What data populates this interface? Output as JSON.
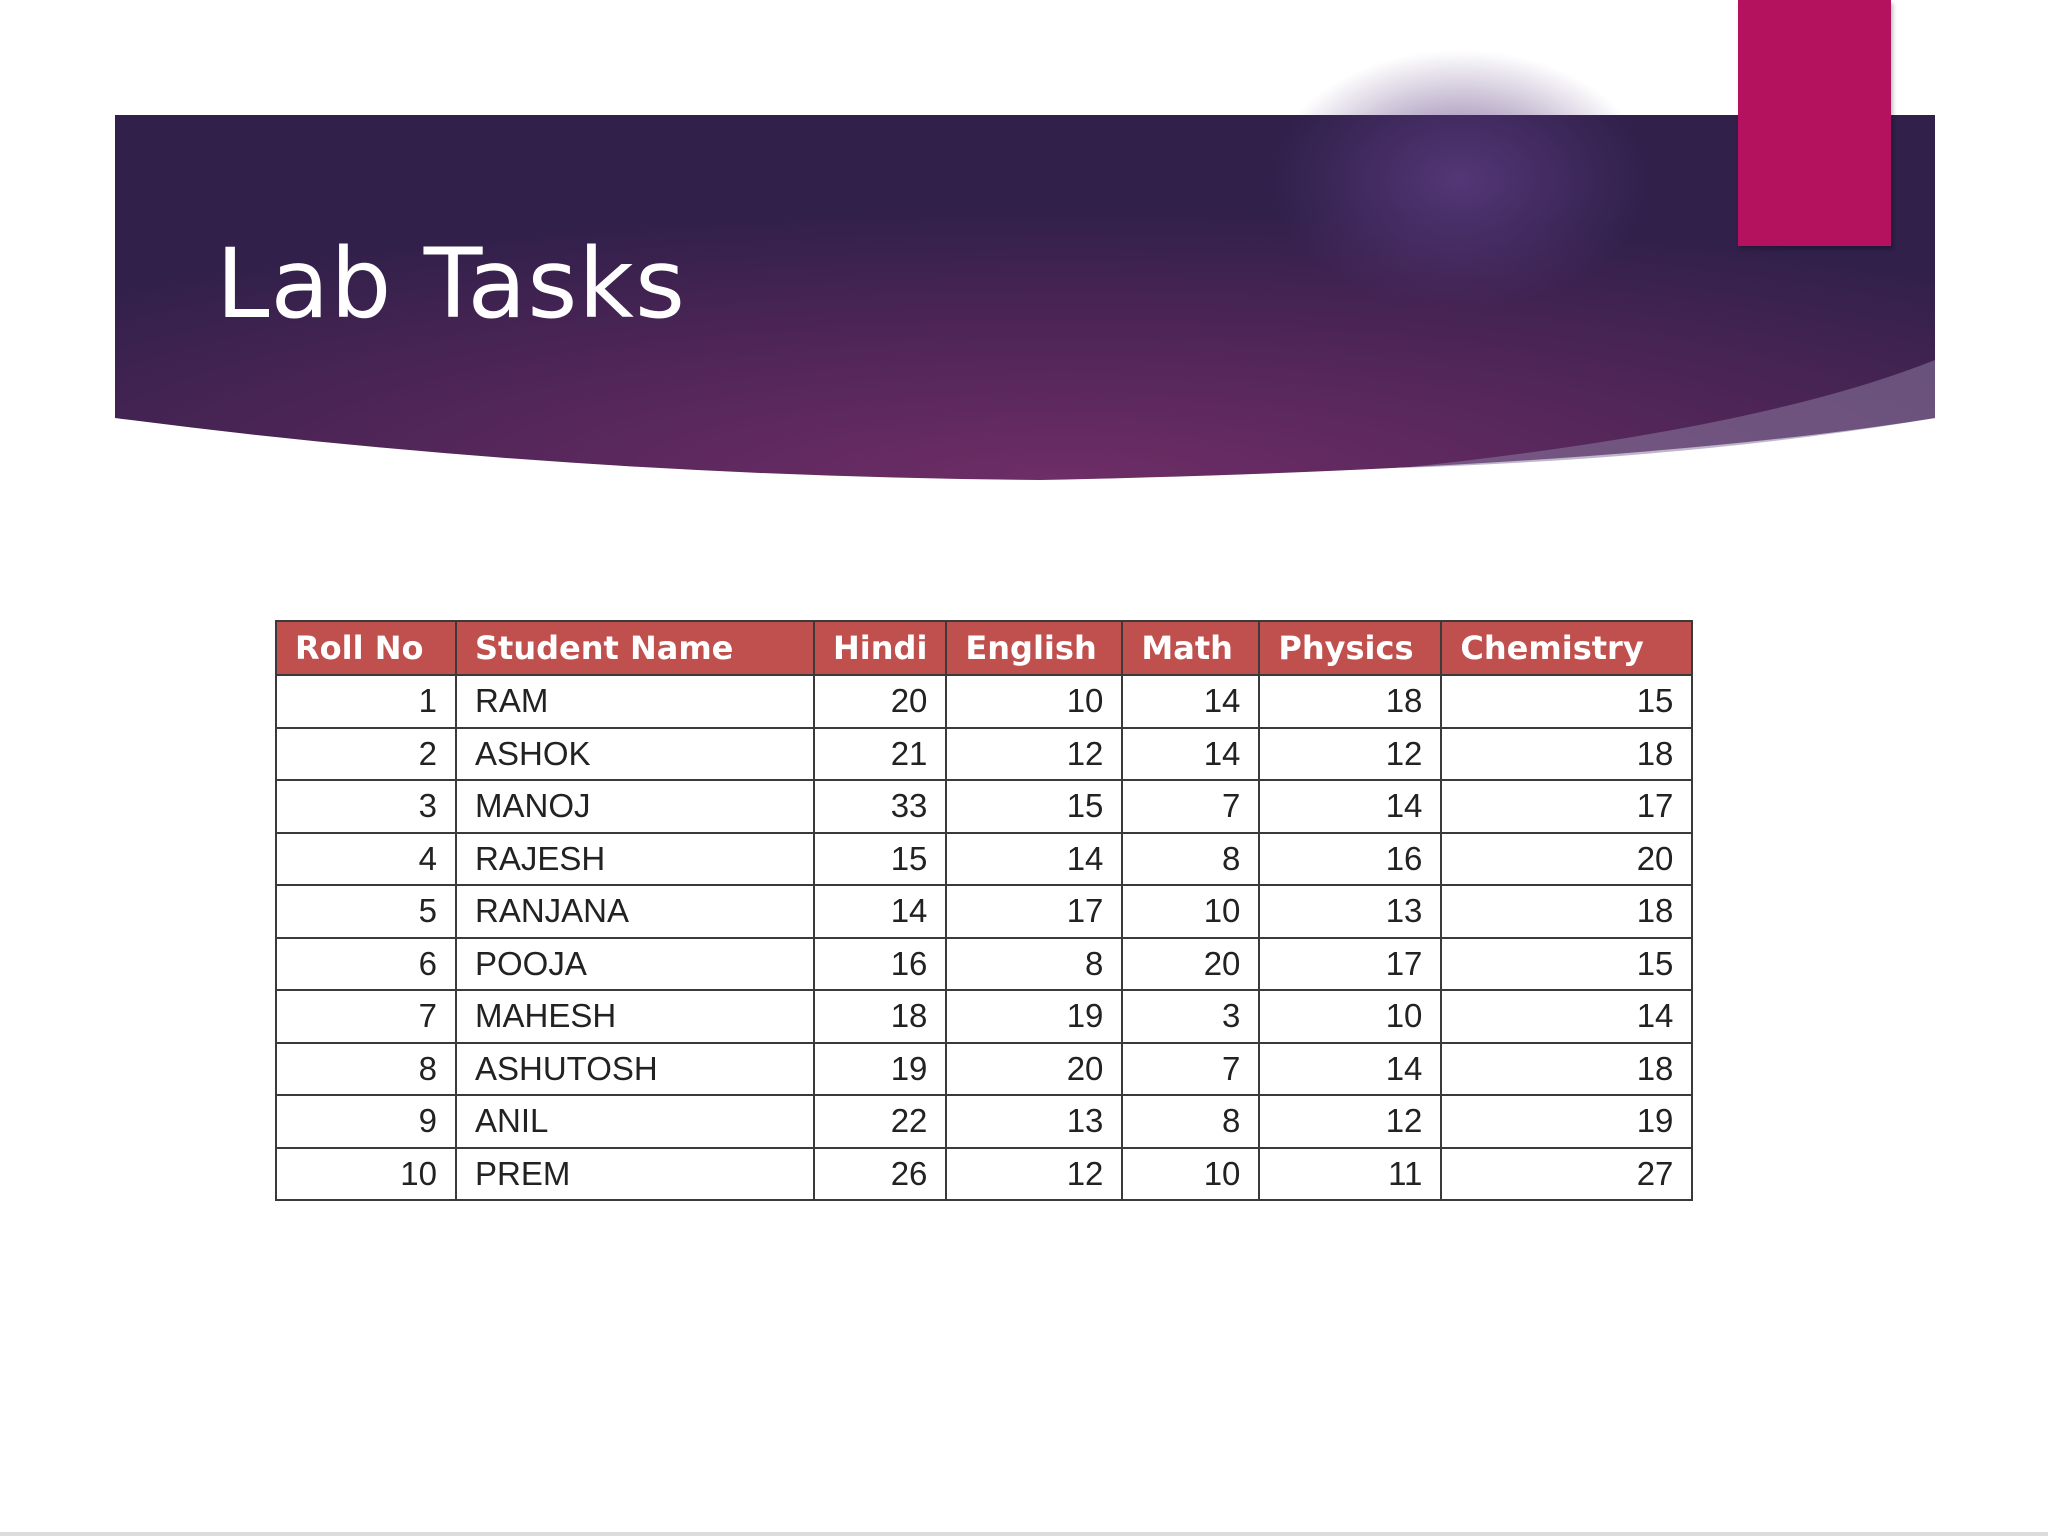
{
  "slide": {
    "title": "Lab Tasks",
    "colors": {
      "banner_dark": "#33204a",
      "banner_mid": "#6a2c63",
      "accent": "#b4115f",
      "header_fill": "#c0504d"
    }
  },
  "table": {
    "headers": [
      "Roll No",
      "Student Name",
      "Hindi",
      "English",
      "Math",
      "Physics",
      "Chemistry"
    ],
    "rows": [
      [
        "1",
        "RAM",
        "20",
        "10",
        "14",
        "18",
        "15"
      ],
      [
        "2",
        "ASHOK",
        "21",
        "12",
        "14",
        "12",
        "18"
      ],
      [
        "3",
        "MANOJ",
        "33",
        "15",
        "7",
        "14",
        "17"
      ],
      [
        "4",
        "RAJESH",
        "15",
        "14",
        "8",
        "16",
        "20"
      ],
      [
        "5",
        "RANJANA",
        "14",
        "17",
        "10",
        "13",
        "18"
      ],
      [
        "6",
        "POOJA",
        "16",
        "8",
        "20",
        "17",
        "15"
      ],
      [
        "7",
        "MAHESH",
        "18",
        "19",
        "3",
        "10",
        "14"
      ],
      [
        "8",
        "ASHUTOSH",
        "19",
        "20",
        "7",
        "14",
        "18"
      ],
      [
        "9",
        "ANIL",
        "22",
        "13",
        "8",
        "12",
        "19"
      ],
      [
        "10",
        "PREM",
        "26",
        "12",
        "10",
        "11",
        "27"
      ]
    ]
  }
}
